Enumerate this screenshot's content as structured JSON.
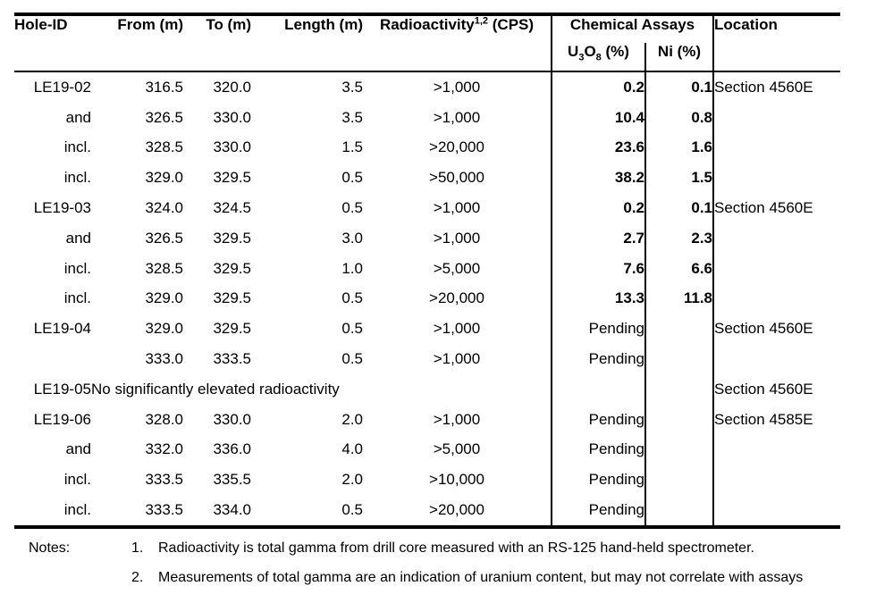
{
  "table": {
    "col_headers": {
      "hole_id": "Hole-ID",
      "from": "From (m)",
      "to": "To (m)",
      "length": "Length (m)",
      "radioactivity": {
        "base": "Radioactivity",
        "sup": "1,2",
        "unit": " (CPS)"
      },
      "chemical_assays": "Chemical Assays",
      "u3o8": {
        "p1": "U",
        "s1": "3",
        "p2": "O",
        "s2": "8",
        "p3": " (%)"
      },
      "ni": "Ni (%)",
      "location": "Location"
    },
    "rows": [
      {
        "hole": "LE19-02",
        "from": "316.5",
        "to": "320.0",
        "length": "3.5",
        "cps": ">1,000",
        "u3o8": "0.2",
        "ni": "0.1",
        "location": "Section 4560E",
        "bold_assays": true
      },
      {
        "hole": "and",
        "from": "326.5",
        "to": "330.0",
        "length": "3.5",
        "cps": ">1,000",
        "u3o8": "10.4",
        "ni": "0.8",
        "location": "",
        "bold_assays": true
      },
      {
        "hole": "incl.",
        "from": "328.5",
        "to": "330.0",
        "length": "1.5",
        "cps": ">20,000",
        "u3o8": "23.6",
        "ni": "1.6",
        "location": "",
        "bold_assays": true
      },
      {
        "hole": "incl.",
        "from": "329.0",
        "to": "329.5",
        "length": "0.5",
        "cps": ">50,000",
        "u3o8": "38.2",
        "ni": "1.5",
        "location": "",
        "bold_assays": true
      },
      {
        "hole": "LE19-03",
        "from": "324.0",
        "to": "324.5",
        "length": "0.5",
        "cps": ">1,000",
        "u3o8": "0.2",
        "ni": "0.1",
        "location": "Section 4560E",
        "bold_assays": true
      },
      {
        "hole": "and",
        "from": "326.5",
        "to": "329.5",
        "length": "3.0",
        "cps": ">1,000",
        "u3o8": "2.7",
        "ni": "2.3",
        "location": "",
        "bold_assays": true
      },
      {
        "hole": "incl.",
        "from": "328.5",
        "to": "329.5",
        "length": "1.0",
        "cps": ">5,000",
        "u3o8": "7.6",
        "ni": "6.6",
        "location": "",
        "bold_assays": true
      },
      {
        "hole": "incl.",
        "from": "329.0",
        "to": "329.5",
        "length": "0.5",
        "cps": ">20,000",
        "u3o8": "13.3",
        "ni": "11.8",
        "location": "",
        "bold_assays": true
      },
      {
        "hole": "LE19-04",
        "from": "329.0",
        "to": "329.5",
        "length": "0.5",
        "cps": ">1,000",
        "u3o8": "Pending",
        "ni": "",
        "location": "Section 4560E",
        "bold_assays": false
      },
      {
        "hole": "",
        "from": "333.0",
        "to": "333.5",
        "length": "0.5",
        "cps": ">1,000",
        "u3o8": "Pending",
        "ni": "",
        "location": "",
        "bold_assays": false
      },
      {
        "hole": "LE19-05",
        "span_text": "No significantly elevated radioactivity",
        "u3o8": "",
        "ni": "",
        "location": "Section 4560E",
        "bold_assays": false
      },
      {
        "hole": "LE19-06",
        "from": "328.0",
        "to": "330.0",
        "length": "2.0",
        "cps": ">1,000",
        "u3o8": "Pending",
        "ni": "",
        "location": "Section 4585E",
        "bold_assays": false
      },
      {
        "hole": "and",
        "from": "332.0",
        "to": "336.0",
        "length": "4.0",
        "cps": ">5,000",
        "u3o8": "Pending",
        "ni": "",
        "location": "",
        "bold_assays": false
      },
      {
        "hole": "incl.",
        "from": "333.5",
        "to": "335.5",
        "length": "2.0",
        "cps": ">10,000",
        "u3o8": "Pending",
        "ni": "",
        "location": "",
        "bold_assays": false
      },
      {
        "hole": "incl.",
        "from": "333.5",
        "to": "334.0",
        "length": "0.5",
        "cps": ">20,000",
        "u3o8": "Pending",
        "ni": "",
        "location": "",
        "bold_assays": false
      }
    ]
  },
  "notes": {
    "label": "Notes:",
    "items": [
      {
        "num": "1.",
        "text": "Radioactivity is total gamma from drill core measured with an RS-125 hand-held spectrometer."
      },
      {
        "num": "2.",
        "text": "Measurements of total gamma are an indication of uranium content, but may not correlate with assays"
      }
    ]
  },
  "colors": {
    "text": "#000000",
    "rule": "#000000",
    "background": "#ffffff"
  }
}
